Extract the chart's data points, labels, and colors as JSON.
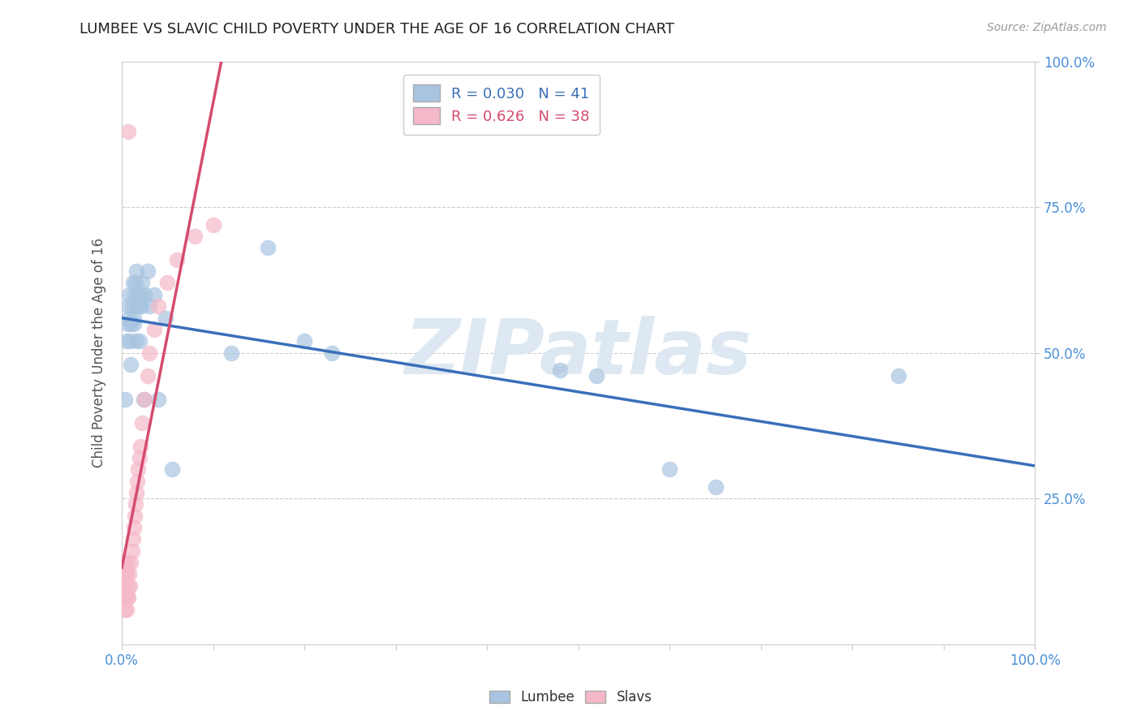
{
  "title": "LUMBEE VS SLAVIC CHILD POVERTY UNDER THE AGE OF 16 CORRELATION CHART",
  "source": "Source: ZipAtlas.com",
  "ylabel": "Child Poverty Under the Age of 16",
  "lumbee_R": 0.03,
  "lumbee_N": 41,
  "slavic_R": 0.626,
  "slavic_N": 38,
  "lumbee_color": "#a8c4e0",
  "slavic_color": "#f5b8c8",
  "lumbee_line_color": "#3a6fba",
  "slavic_line_color": "#d44b6e",
  "background_color": "#ffffff",
  "watermark": "ZIPatlas",
  "watermark_color": "#dde8f2",
  "grid_color": "#cccccc",
  "title_color": "#333333",
  "tick_color": "#4a90d9",
  "right_tick_color": "#4a90d9",
  "lumbee_x": [
    0.003,
    0.005,
    0.006,
    0.007,
    0.008,
    0.008,
    0.009,
    0.01,
    0.01,
    0.011,
    0.012,
    0.013,
    0.014,
    0.015,
    0.016,
    0.017,
    0.018,
    0.019,
    0.02,
    0.021,
    0.022,
    0.025,
    0.028,
    0.03,
    0.035,
    0.04,
    0.048,
    0.055,
    0.12,
    0.16,
    0.2,
    0.23,
    0.48,
    0.52,
    0.6,
    0.65,
    0.85,
    0.013,
    0.016,
    0.019,
    0.024
  ],
  "lumbee_y": [
    0.42,
    0.52,
    0.55,
    0.58,
    0.6,
    0.56,
    0.52,
    0.55,
    0.48,
    0.58,
    0.62,
    0.55,
    0.6,
    0.62,
    0.64,
    0.58,
    0.6,
    0.52,
    0.6,
    0.58,
    0.62,
    0.6,
    0.64,
    0.58,
    0.6,
    0.42,
    0.56,
    0.3,
    0.5,
    0.68,
    0.52,
    0.5,
    0.47,
    0.46,
    0.3,
    0.27,
    0.46,
    0.56,
    0.52,
    0.58,
    0.42
  ],
  "slavic_x": [
    0.001,
    0.001,
    0.002,
    0.002,
    0.003,
    0.003,
    0.004,
    0.004,
    0.005,
    0.005,
    0.006,
    0.006,
    0.007,
    0.007,
    0.008,
    0.009,
    0.01,
    0.011,
    0.012,
    0.013,
    0.014,
    0.015,
    0.016,
    0.017,
    0.018,
    0.019,
    0.02,
    0.022,
    0.025,
    0.028,
    0.03,
    0.035,
    0.04,
    0.05,
    0.06,
    0.08,
    0.1,
    0.007
  ],
  "slavic_y": [
    0.1,
    0.12,
    0.08,
    0.14,
    0.06,
    0.1,
    0.08,
    0.12,
    0.06,
    0.12,
    0.08,
    0.14,
    0.1,
    0.08,
    0.12,
    0.1,
    0.14,
    0.16,
    0.18,
    0.2,
    0.22,
    0.24,
    0.26,
    0.28,
    0.3,
    0.32,
    0.34,
    0.38,
    0.42,
    0.46,
    0.5,
    0.54,
    0.58,
    0.62,
    0.66,
    0.7,
    0.72,
    0.88
  ],
  "xlim": [
    0.0,
    1.0
  ],
  "ylim": [
    0.0,
    1.0
  ]
}
